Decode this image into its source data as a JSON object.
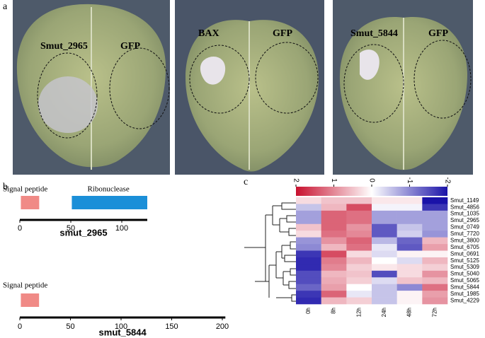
{
  "panel_a": {
    "label": "a",
    "photos": [
      {
        "labels": [
          "Smut_2965",
          "GFP"
        ]
      },
      {
        "labels": [
          "BAX",
          "GFP"
        ]
      },
      {
        "labels": [
          "Smut_5844",
          "GFP"
        ]
      }
    ]
  },
  "chart_data": [
    {
      "type": "domain",
      "panel_label": "b",
      "protein": "smut_2965",
      "xlim": [
        0,
        125
      ],
      "xticks": [
        0,
        50,
        100
      ],
      "domains": [
        {
          "name": "Signal peptide",
          "start": 1,
          "end": 19,
          "color": "#f08a86"
        },
        {
          "name": "Ribonuclease",
          "start": 51,
          "end": 125,
          "color": "#1b8fd8"
        }
      ]
    },
    {
      "type": "domain",
      "protein": "smut_5844",
      "xlim": [
        0,
        203
      ],
      "xticks": [
        0,
        50,
        100,
        150,
        200
      ],
      "domains": [
        {
          "name": "Signal peptide",
          "start": 1,
          "end": 19,
          "color": "#f08a86"
        }
      ]
    },
    {
      "type": "heatmap",
      "panel_label": "c",
      "columns": [
        "0h",
        "8h",
        "12h",
        "24h",
        "48h",
        "72h"
      ],
      "rows": [
        "Smut_1149",
        "Smut_4856",
        "Smut_1035",
        "Smut_2965",
        "Smut_0749",
        "Smut_7720",
        "Smut_3800",
        "Smut_6705",
        "Smut_0691",
        "Smut_5125",
        "Smut_5309",
        "Smut_5040",
        "Smut_5065",
        "Smut_5844",
        "Smut_1985",
        "Smut_4229"
      ],
      "values": [
        [
          0.3,
          0.5,
          0.5,
          0.2,
          0.2,
          -2.0
        ],
        [
          -0.5,
          0.6,
          1.5,
          -0.1,
          -0.1,
          -1.7
        ],
        [
          -0.8,
          1.3,
          1.2,
          -0.8,
          -0.8,
          -0.8
        ],
        [
          -0.8,
          1.3,
          1.2,
          -0.8,
          -0.8,
          -0.8
        ],
        [
          0.5,
          1.3,
          0.9,
          -1.4,
          -0.5,
          -0.8
        ],
        [
          0.3,
          1.2,
          1.0,
          -1.4,
          -0.4,
          -0.9
        ],
        [
          -0.9,
          0.9,
          1.3,
          -0.6,
          -1.3,
          0.6
        ],
        [
          -1.0,
          0.6,
          1.2,
          -0.2,
          -1.4,
          0.8
        ],
        [
          -1.7,
          1.5,
          0.3,
          -0.3,
          0.1,
          0.1
        ],
        [
          -1.8,
          1.1,
          0.6,
          0.0,
          -0.3,
          0.6
        ],
        [
          -1.8,
          1.0,
          0.4,
          0.2,
          0.3,
          0.4
        ],
        [
          -1.5,
          0.6,
          0.5,
          -1.5,
          0.3,
          0.9
        ],
        [
          -1.5,
          0.7,
          0.4,
          -0.3,
          0.5,
          0.6
        ],
        [
          -1.3,
          0.8,
          0.0,
          -0.5,
          -1.0,
          1.2
        ],
        [
          -1.7,
          1.3,
          -0.2,
          -0.5,
          0.1,
          0.8
        ],
        [
          -1.8,
          0.6,
          0.4,
          -0.5,
          0.1,
          0.9
        ]
      ],
      "clim": [
        2,
        -2
      ],
      "cticks": [
        2,
        1,
        0,
        -1,
        -2
      ],
      "colors": [
        "#c8102e",
        "#ffffff",
        "#1a12a8"
      ]
    }
  ]
}
